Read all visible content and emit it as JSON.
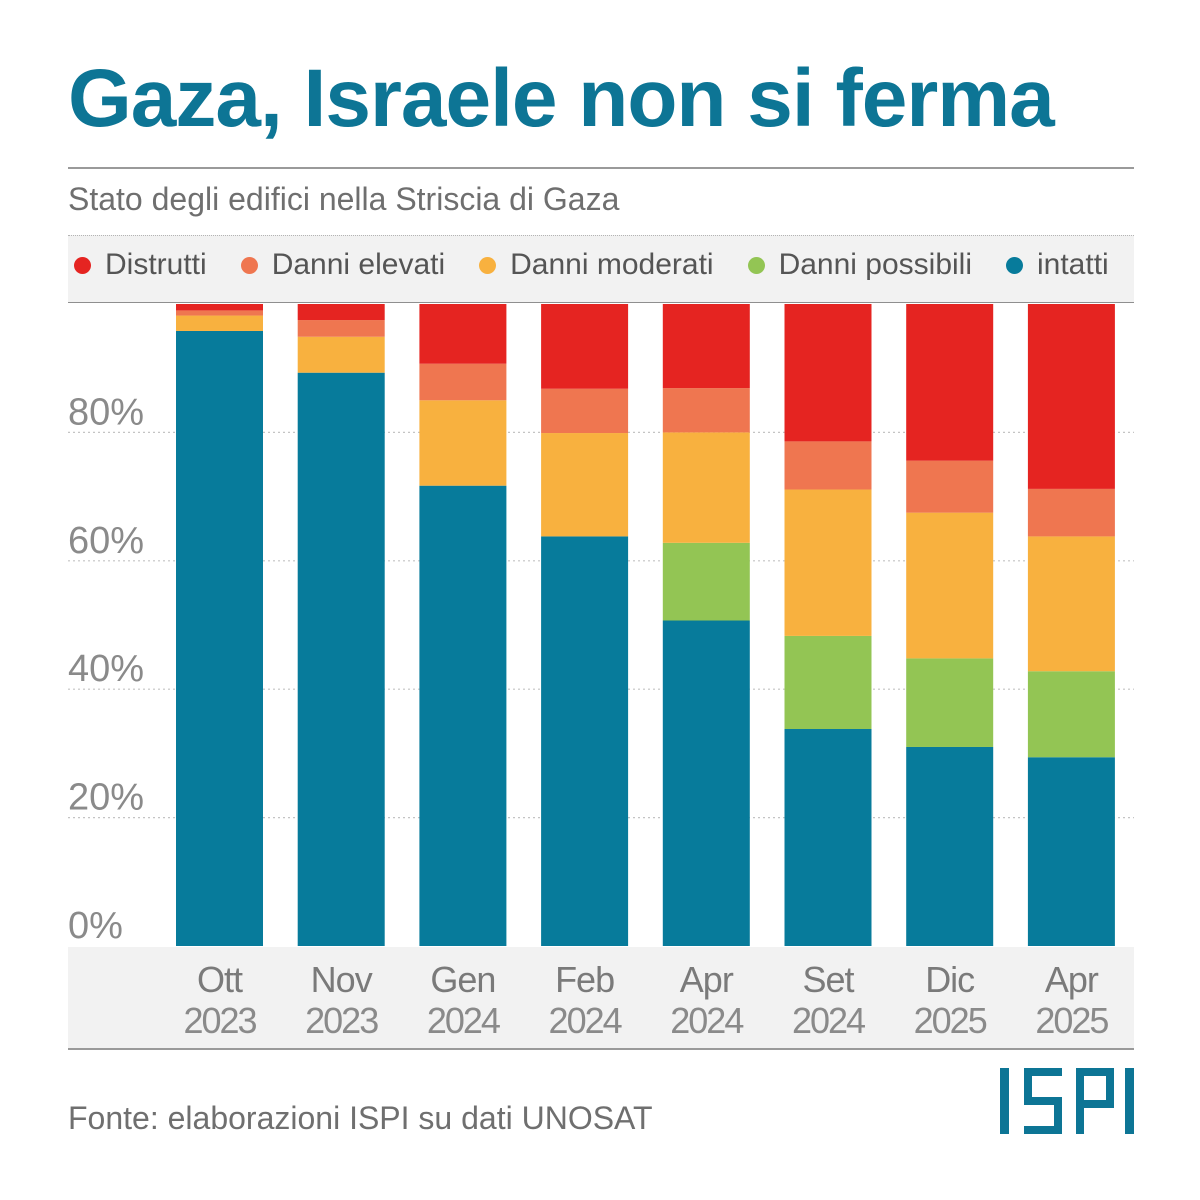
{
  "title": "Gaza, Israele non si ferma",
  "subtitle": "Stato degli edifici nella Striscia di Gaza",
  "source": "Fonte: elaborazioni ISPI su dati UNOSAT",
  "logo_text": "ISPI",
  "colors": {
    "title": "#0d7595",
    "distrutti": "#e52421",
    "danni_elevati": "#ef7650",
    "danni_moderati": "#f8b13f",
    "danni_possibili": "#93c554",
    "intatti": "#077b9b"
  },
  "chart_data": {
    "type": "bar",
    "stacked": true,
    "categories": [
      {
        "month": "Ott",
        "year": "2023"
      },
      {
        "month": "Nov",
        "year": "2023"
      },
      {
        "month": "Gen",
        "year": "2024"
      },
      {
        "month": "Feb",
        "year": "2024"
      },
      {
        "month": "Apr",
        "year": "2024"
      },
      {
        "month": "Set",
        "year": "2024"
      },
      {
        "month": "Dic",
        "year": "2025"
      },
      {
        "month": "Apr",
        "year": "2025"
      }
    ],
    "series": [
      {
        "key": "intatti",
        "name": "intatti",
        "color": "#077b9b",
        "values": [
          95.8,
          89.3,
          71.7,
          63.8,
          50.7,
          33.8,
          31.0,
          29.4
        ]
      },
      {
        "key": "danni_possibili",
        "name": "Danni possibili",
        "color": "#93c554",
        "values": [
          0,
          0,
          0,
          0,
          12.1,
          14.5,
          13.8,
          13.4
        ]
      },
      {
        "key": "danni_moderati",
        "name": "Danni moderati",
        "color": "#f8b13f",
        "values": [
          2.4,
          5.6,
          13.3,
          16.1,
          17.2,
          22.8,
          22.7,
          21.0
        ]
      },
      {
        "key": "danni_elevati",
        "name": "Danni elevati",
        "color": "#ef7650",
        "values": [
          0.8,
          2.6,
          5.7,
          6.9,
          6.9,
          7.5,
          8.1,
          7.4
        ]
      },
      {
        "key": "distrutti",
        "name": "Distrutti",
        "color": "#e52421",
        "values": [
          1.0,
          2.5,
          9.3,
          13.2,
          13.1,
          21.4,
          24.4,
          28.8
        ]
      }
    ],
    "legend_order": [
      "distrutti",
      "danni_elevati",
      "danni_moderati",
      "danni_possibili",
      "intatti"
    ],
    "yticks": [
      "0%",
      "20%",
      "40%",
      "60%",
      "80%"
    ],
    "ytick_values": [
      0,
      20,
      40,
      60,
      80
    ],
    "ylim": [
      0,
      100
    ],
    "grid": true,
    "legend_position": "top"
  }
}
